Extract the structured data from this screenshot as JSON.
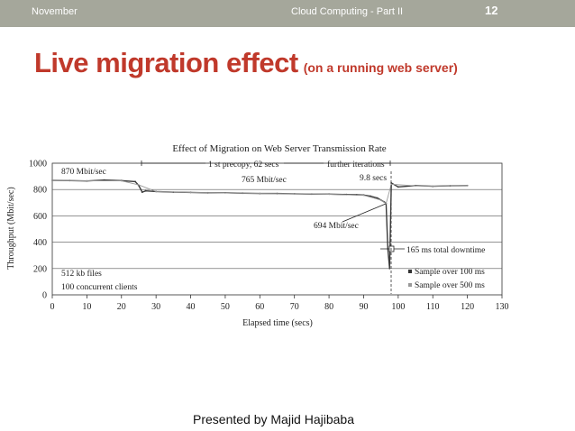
{
  "header": {
    "left": "November",
    "center": "Cloud Computing - Part II",
    "page": "12",
    "bar_color": "#a5a79b"
  },
  "slide": {
    "title": "Live migration effect",
    "subtitle": "(on a running web server)",
    "title_color": "#c0392b",
    "footer": "Presented by Majid Hajibaba"
  },
  "chart_data": {
    "type": "line",
    "title": "Effect of Migration on Web Server Transmission Rate",
    "xlabel": "Elapsed time (secs)",
    "ylabel": "Throughput (Mbit/sec)",
    "xlim": [
      0,
      130
    ],
    "ylim": [
      0,
      1000
    ],
    "xticks": [
      "0",
      "10",
      "20",
      "30",
      "40",
      "50",
      "60",
      "70",
      "80",
      "90",
      "100",
      "110",
      "120",
      "130"
    ],
    "yticks": [
      "0",
      "200",
      "400",
      "600",
      "800",
      "1000"
    ],
    "grid": "horizontal",
    "legend_position": "bottom-right",
    "series": [
      {
        "name": "Sample over 100 ms",
        "x": [
          0,
          5,
          10,
          15,
          20,
          24,
          25,
          26,
          27,
          30,
          35,
          40,
          45,
          50,
          55,
          60,
          65,
          70,
          75,
          80,
          85,
          88,
          90,
          92,
          94,
          95,
          96,
          96.5,
          97,
          97.5,
          98,
          100,
          105,
          110,
          115,
          120
        ],
        "y": [
          870,
          868,
          865,
          872,
          868,
          860,
          830,
          780,
          790,
          785,
          780,
          778,
          775,
          775,
          772,
          770,
          770,
          768,
          765,
          765,
          762,
          760,
          758,
          750,
          735,
          720,
          705,
          694,
          350,
          200,
          850,
          820,
          830,
          825,
          828,
          830
        ]
      },
      {
        "name": "Sample over 500 ms",
        "x": [
          0,
          10,
          20,
          25,
          30,
          40,
          50,
          60,
          70,
          80,
          90,
          95,
          96.5,
          98,
          105,
          110,
          120
        ],
        "y": [
          870,
          866,
          866,
          835,
          785,
          778,
          774,
          770,
          768,
          764,
          756,
          720,
          694,
          840,
          828,
          826,
          830
        ]
      }
    ],
    "annotations": [
      "870 Mbit/sec",
      "765 Mbit/sec",
      "694 Mbit/sec",
      "1 st precopy, 62 secs",
      "further iterations",
      "9.8 secs",
      "165 ms total downtime",
      "512 kb files",
      "100 concurrent clients"
    ]
  }
}
